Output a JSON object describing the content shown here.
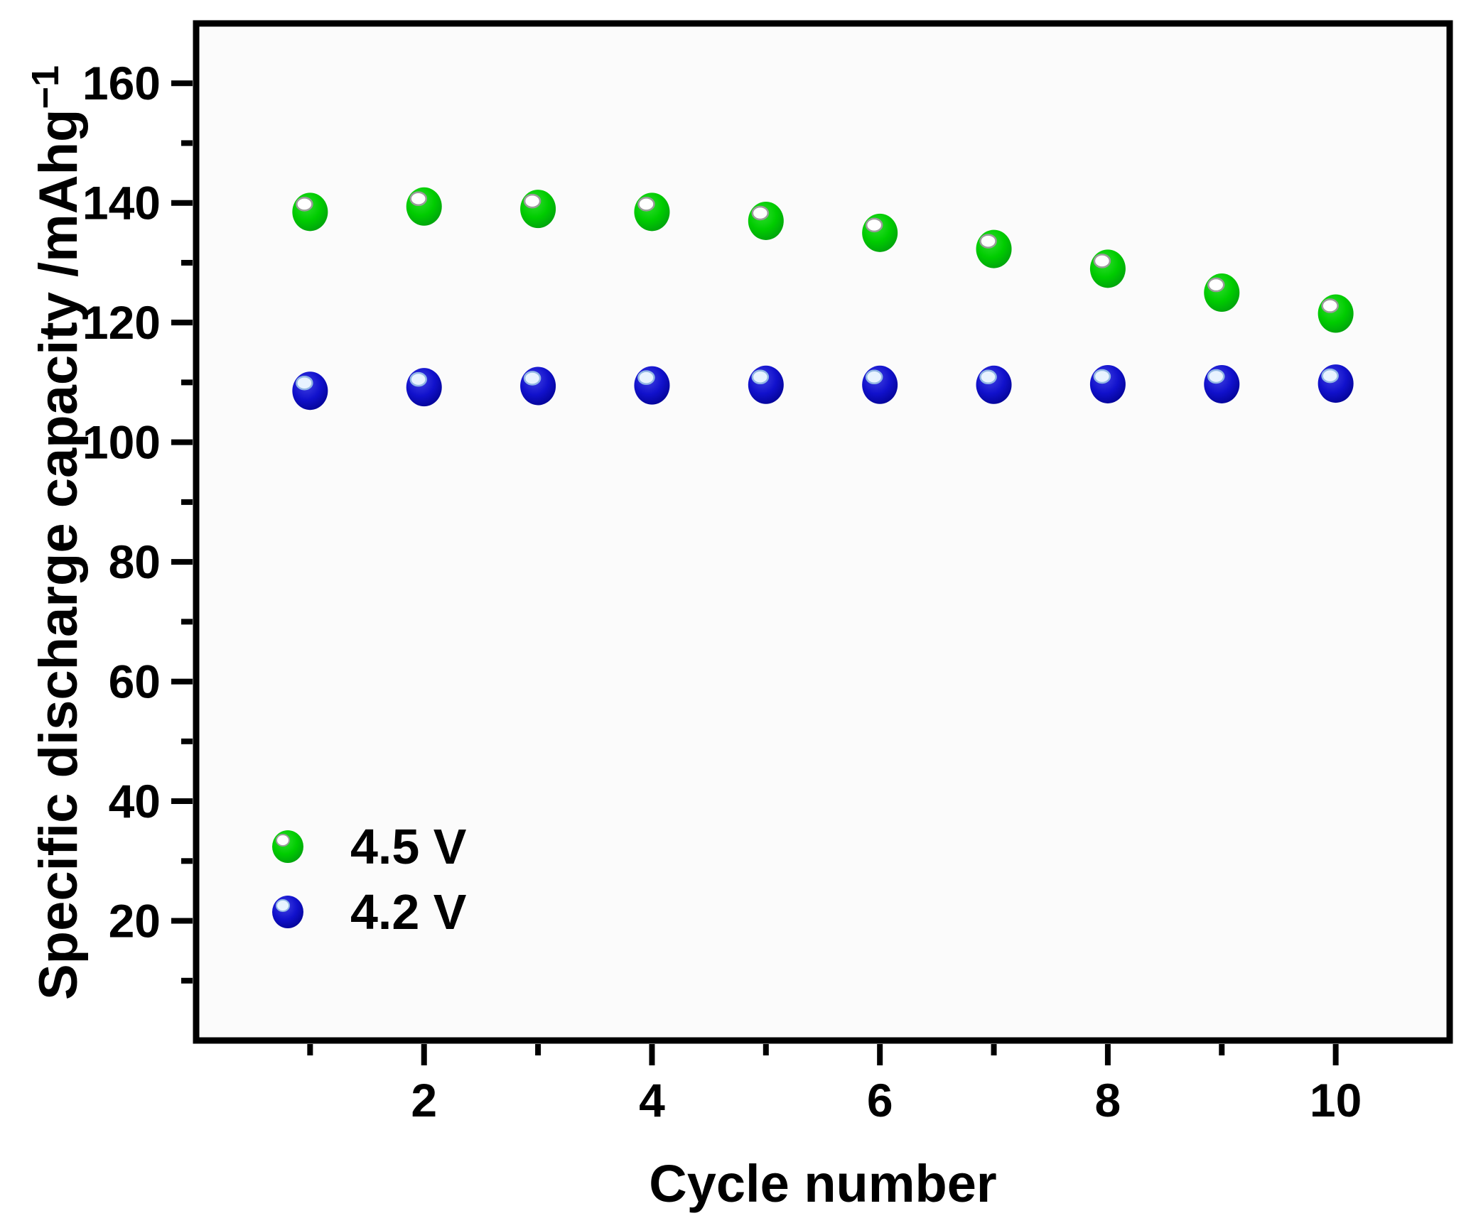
{
  "figure": {
    "background": "#ffffff",
    "plot_background": "#fbfbfb",
    "frame_color": "#000000",
    "text_color": "#000000"
  },
  "chart_data": {
    "type": "scatter",
    "title": "",
    "xlabel": "Cycle number",
    "ylabel": "Specific discharge capacity /mAhg−1",
    "ylabel_main": "Specific discharge capacity /mAhg",
    "ylabel_superscript": "−1",
    "xlim": [
      0,
      11
    ],
    "ylim": [
      0,
      170
    ],
    "x_major_ticks": [
      2,
      4,
      6,
      8,
      10
    ],
    "x_minor_ticks": [
      1,
      3,
      5,
      7,
      9
    ],
    "y_major_ticks": [
      20,
      40,
      60,
      80,
      100,
      120,
      140,
      160
    ],
    "y_minor_ticks": [
      10,
      30,
      50,
      70,
      90,
      110,
      130,
      150
    ],
    "grid": false,
    "legend_position": "lower-left",
    "x": [
      1,
      2,
      3,
      4,
      5,
      6,
      7,
      8,
      9,
      10
    ],
    "series": [
      {
        "name": "4.5 V",
        "label_color": "#14ad14",
        "ball_center": "#2ede2e",
        "ball_mid": "#00cc00",
        "ball_edge": "#009611",
        "highlight": "#ffffff",
        "highlight_rim": "#9b9b9b",
        "values": [
          138.5,
          139.4,
          139.0,
          138.5,
          137.0,
          135.0,
          132.3,
          129.0,
          125.0,
          121.5
        ]
      },
      {
        "name": "4.2 V",
        "label_color": "#1a1a8f",
        "ball_center": "#4040e2",
        "ball_mid": "#1111cc",
        "ball_edge": "#000088",
        "highlight": "#e8f3ff",
        "highlight_rim": "#93b7e4",
        "values": [
          108.6,
          109.2,
          109.4,
          109.5,
          109.6,
          109.6,
          109.6,
          109.7,
          109.7,
          109.8
        ]
      }
    ]
  }
}
